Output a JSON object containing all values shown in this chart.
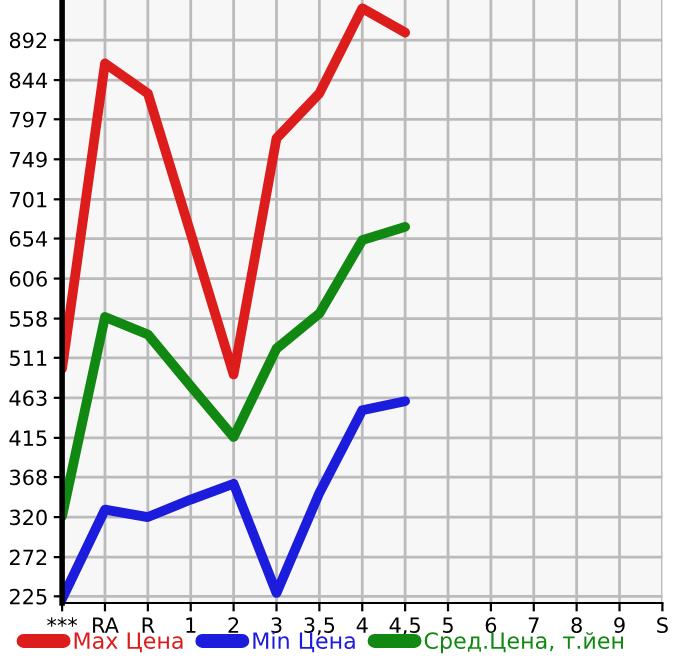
{
  "chart_data": {
    "type": "line",
    "categories": [
      "***",
      "RA",
      "R",
      "1",
      "2",
      "3",
      "3,5",
      "4",
      "4,5",
      "5",
      "6",
      "7",
      "8",
      "9",
      "S"
    ],
    "series": [
      {
        "name": "Max Цена",
        "color": "#dd1c1c",
        "values": [
          498,
          864,
          828,
          660,
          491,
          774,
          828,
          930,
          901,
          null,
          null,
          null,
          null,
          null,
          null
        ]
      },
      {
        "name": "Min Цена",
        "color": "#1c1cdd",
        "values": [
          222,
          329,
          320,
          341,
          360,
          229,
          349,
          448,
          459,
          null,
          null,
          null,
          null,
          null,
          null
        ]
      },
      {
        "name": "Сред.Цена, т.йен",
        "color": "#118811",
        "values": [
          321,
          560,
          539,
          477,
          416,
          522,
          564,
          652,
          668,
          null,
          null,
          null,
          null,
          null,
          null
        ]
      }
    ],
    "ylim": [
      217,
      940
    ],
    "yticks": [
      225,
      272,
      320,
      368,
      415,
      463,
      511,
      558,
      606,
      654,
      701,
      749,
      797,
      844,
      892
    ],
    "grid": true,
    "legend": "bottom",
    "marker": "none",
    "line_style": "solid"
  }
}
